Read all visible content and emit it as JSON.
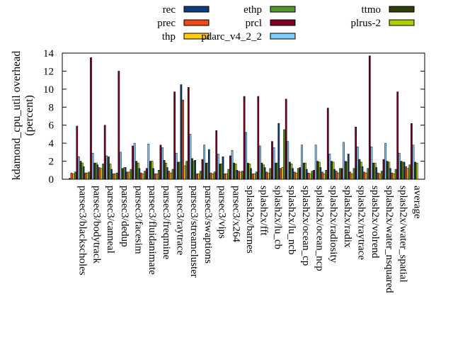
{
  "chart_data": {
    "type": "bar",
    "ylabel": "kdamond_cpu_util overhead\n(percent)",
    "ylim": [
      0,
      14
    ],
    "yticks": [
      0,
      2,
      4,
      6,
      8,
      10,
      12,
      14
    ],
    "legend_position": "top",
    "categories": [
      "parsec3/blackscholes",
      "parsec3/bodytrack",
      "parsec3/canneal",
      "parsec3/dedup",
      "parsec3/facesim",
      "parsec3/fluidanimate",
      "parsec3/freqmine",
      "parsec3/raytrace",
      "parsec3/streamcluster",
      "parsec3/swaptions",
      "parsec3/vips",
      "parsec3/x264",
      "splash2x/barnes",
      "splash2x/fft",
      "splash2x/lu_cb",
      "splash2x/lu_ncb",
      "splash2x/ocean_cp",
      "splash2x/ocean_ncp",
      "splash2x/radiosity",
      "splash2x/radix",
      "splash2x/raytrace",
      "splash2x/volrend",
      "splash2x/water_nsquared",
      "splash2x/water_spatial",
      "average"
    ],
    "series": [
      {
        "name": "rec",
        "color": "#0a3f7f",
        "values": [
          0.1,
          1.4,
          1.6,
          1.1,
          1.3,
          1.2,
          1.2,
          1.3,
          10.5,
          2.1,
          3.3,
          2.5,
          1.0,
          1.2,
          1.3,
          6.2,
          1.2,
          1.1,
          1.3,
          1.1,
          2.8,
          1.4,
          1.3,
          1.2,
          1.9
        ]
      },
      {
        "name": "prec",
        "color": "#f04a16",
        "values": [
          0.7,
          0.7,
          1.3,
          0.6,
          0.8,
          0.7,
          0.6,
          0.9,
          8.8,
          0.6,
          0.7,
          0.6,
          0.9,
          0.6,
          0.8,
          1.2,
          0.8,
          0.7,
          0.8,
          0.9,
          0.8,
          0.8,
          0.7,
          0.7,
          1.4
        ]
      },
      {
        "name": "thp",
        "color": "#ffcc10",
        "values": [
          0.6,
          0.7,
          1.2,
          0.6,
          0.8,
          0.6,
          0.6,
          0.7,
          1.5,
          0.6,
          0.6,
          0.6,
          0.8,
          0.6,
          0.7,
          1.3,
          0.7,
          0.6,
          0.6,
          0.7,
          0.6,
          0.7,
          0.6,
          0.6,
          1.2
        ]
      },
      {
        "name": "ethp",
        "color": "#4f9a28",
        "values": [
          0.8,
          0.8,
          1.7,
          0.7,
          1.1,
          0.9,
          1.0,
          1.1,
          2.0,
          0.9,
          0.8,
          1.1,
          0.9,
          0.8,
          1.2,
          5.5,
          1.2,
          0.9,
          1.0,
          1.2,
          1.2,
          1.2,
          0.9,
          1.1,
          1.6
        ]
      },
      {
        "name": "prcl",
        "color": "#7e0021",
        "values": [
          5.9,
          13.5,
          6.0,
          12.0,
          3.7,
          1.2,
          3.8,
          9.7,
          10.2,
          2.2,
          5.4,
          2.6,
          9.2,
          9.2,
          4.2,
          8.9,
          1.3,
          1.0,
          7.9,
          1.2,
          5.8,
          13.7,
          2.2,
          9.7,
          6.2
        ]
      },
      {
        "name": "pdarc_v4_2_2",
        "color": "#83caff",
        "values": [
          2.5,
          2.9,
          2.6,
          3.0,
          4.0,
          3.9,
          3.5,
          2.9,
          5.0,
          3.8,
          2.8,
          3.2,
          5.2,
          3.7,
          3.5,
          4.2,
          3.8,
          3.8,
          2.8,
          4.1,
          3.6,
          3.6,
          4.0,
          2.9,
          3.8
        ]
      },
      {
        "name": "ttmo",
        "color": "#314004",
        "values": [
          2.0,
          1.8,
          2.5,
          1.2,
          2.0,
          2.0,
          2.1,
          1.9,
          2.3,
          1.8,
          1.7,
          1.8,
          1.8,
          1.8,
          1.8,
          1.9,
          1.8,
          2.0,
          2.0,
          2.0,
          2.2,
          1.8,
          2.0,
          2.0,
          1.9
        ]
      },
      {
        "name": "plrus-2",
        "color": "#aecf00",
        "values": [
          1.8,
          1.8,
          1.7,
          1.3,
          1.8,
          2.0,
          1.8,
          1.9,
          2.0,
          1.8,
          1.7,
          1.7,
          1.7,
          1.6,
          1.8,
          1.7,
          1.8,
          1.9,
          1.9,
          1.9,
          1.9,
          1.8,
          1.9,
          1.9,
          1.8
        ]
      }
    ]
  }
}
